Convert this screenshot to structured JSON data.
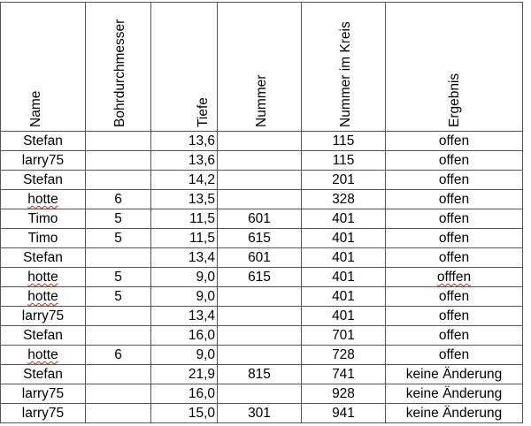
{
  "headers": [
    "Name",
    "Bohrdurchmesser",
    "Tiefe",
    "Nummer",
    "Nummer im Kreis",
    "Ergebnis"
  ],
  "rows": [
    {
      "name": "Stefan",
      "bohr": "",
      "tiefe": "13,6",
      "nummer": "",
      "kreis": "115",
      "ergebnis": "offen"
    },
    {
      "name": "larry75",
      "bohr": "",
      "tiefe": "13,6",
      "nummer": "",
      "kreis": "115",
      "ergebnis": "offen"
    },
    {
      "name": "Stefan",
      "bohr": "",
      "tiefe": "14,2",
      "nummer": "",
      "kreis": "201",
      "ergebnis": "offen"
    },
    {
      "name": "hotte",
      "bohr": "6",
      "tiefe": "13,5",
      "nummer": "",
      "kreis": "328",
      "ergebnis": "offen"
    },
    {
      "name": "Timo",
      "bohr": "5",
      "tiefe": "11,5",
      "nummer": "601",
      "kreis": "401",
      "ergebnis": "offen"
    },
    {
      "name": "Timo",
      "bohr": "5",
      "tiefe": "11,5",
      "nummer": "615",
      "kreis": "401",
      "ergebnis": "offen"
    },
    {
      "name": "Stefan",
      "bohr": "",
      "tiefe": "13,4",
      "nummer": "601",
      "kreis": "401",
      "ergebnis": "offen"
    },
    {
      "name": "hotte",
      "bohr": "5",
      "tiefe": "9,0",
      "nummer": "615",
      "kreis": "401",
      "ergebnis": "offfen"
    },
    {
      "name": "hotte",
      "bohr": "5",
      "tiefe": "9,0",
      "nummer": "",
      "kreis": "401",
      "ergebnis": "offen"
    },
    {
      "name": "larry75",
      "bohr": "",
      "tiefe": "13,4",
      "nummer": "",
      "kreis": "401",
      "ergebnis": "offen"
    },
    {
      "name": "Stefan",
      "bohr": "",
      "tiefe": "16,0",
      "nummer": "",
      "kreis": "701",
      "ergebnis": "offen"
    },
    {
      "name": "hotte",
      "bohr": "6",
      "tiefe": "9,0",
      "nummer": "",
      "kreis": "728",
      "ergebnis": "offen"
    },
    {
      "name": "Stefan",
      "bohr": "",
      "tiefe": "21,9",
      "nummer": "815",
      "kreis": "741",
      "ergebnis": "keine Änderung"
    },
    {
      "name": "larry75",
      "bohr": "",
      "tiefe": "16,0",
      "nummer": "",
      "kreis": "928",
      "ergebnis": "keine Änderung"
    },
    {
      "name": "larry75",
      "bohr": "",
      "tiefe": "15,0",
      "nummer": "301",
      "kreis": "941",
      "ergebnis": "keine Änderung"
    }
  ]
}
